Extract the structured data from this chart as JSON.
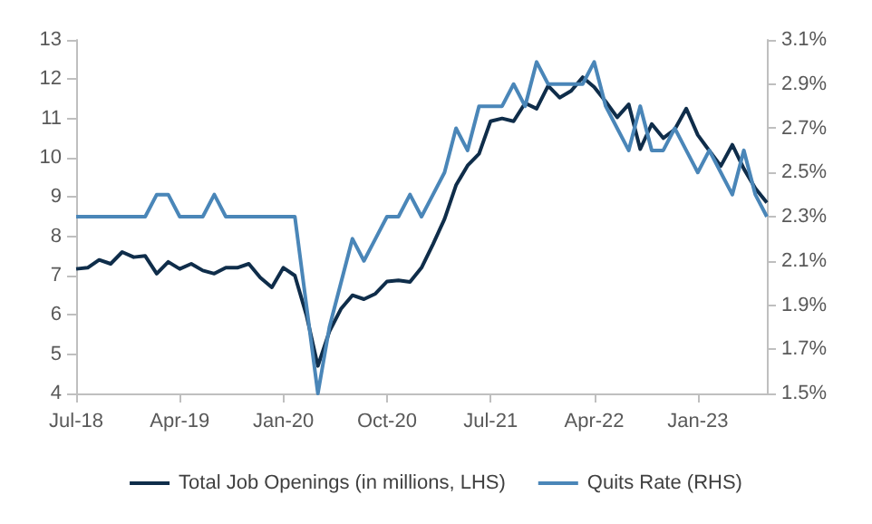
{
  "chart_data": {
    "type": "line",
    "categories": [
      "Jul-18",
      null,
      null,
      null,
      null,
      null,
      null,
      null,
      null,
      "Apr-19",
      null,
      null,
      null,
      null,
      null,
      null,
      null,
      null,
      "Jan-20",
      null,
      null,
      null,
      null,
      null,
      null,
      null,
      null,
      "Oct-20",
      null,
      null,
      null,
      null,
      null,
      null,
      null,
      null,
      "Jul-21",
      null,
      null,
      null,
      null,
      null,
      null,
      null,
      null,
      "Apr-22",
      null,
      null,
      null,
      null,
      null,
      null,
      null,
      null,
      "Jan-23",
      null,
      null,
      null,
      null,
      null,
      null
    ],
    "series": [
      {
        "name": "Total Job Openings (in millions, LHS)",
        "color": "#0f2d4a",
        "values": [
          7.17,
          7.2,
          7.4,
          7.3,
          7.6,
          7.47,
          7.5,
          7.05,
          7.35,
          7.17,
          7.3,
          7.13,
          7.05,
          7.2,
          7.2,
          7.3,
          6.95,
          6.7,
          7.2,
          7.0,
          6.0,
          4.7,
          5.58,
          6.15,
          6.5,
          6.4,
          6.54,
          6.85,
          6.88,
          6.84,
          7.2,
          7.8,
          8.44,
          9.3,
          9.8,
          10.1,
          10.93,
          11.0,
          10.93,
          11.39,
          11.25,
          11.83,
          11.53,
          11.7,
          12.05,
          11.8,
          11.43,
          11.03,
          11.36,
          10.22,
          10.86,
          10.5,
          10.72,
          11.25,
          10.58,
          10.18,
          9.79,
          10.33,
          9.72,
          9.22,
          8.86
        ]
      },
      {
        "name": "Quits Rate (RHS)",
        "color": "#4a86b8",
        "axis": "y2",
        "values": [
          2.3,
          2.3,
          2.3,
          2.3,
          2.3,
          2.3,
          2.3,
          2.4,
          2.4,
          2.3,
          2.3,
          2.3,
          2.4,
          2.3,
          2.3,
          2.3,
          2.3,
          2.3,
          2.3,
          2.3,
          1.9,
          1.5,
          1.8,
          2.0,
          2.2,
          2.1,
          2.2,
          2.3,
          2.3,
          2.4,
          2.3,
          2.4,
          2.5,
          2.7,
          2.6,
          2.8,
          2.8,
          2.8,
          2.9,
          2.8,
          3.0,
          2.9,
          2.9,
          2.9,
          2.9,
          3.0,
          2.8,
          2.7,
          2.6,
          2.8,
          2.6,
          2.6,
          2.7,
          2.6,
          2.5,
          2.6,
          2.5,
          2.4,
          2.6,
          2.4,
          2.3
        ]
      }
    ],
    "ylim": [
      4,
      13
    ],
    "yticks": [
      4,
      5,
      6,
      7,
      8,
      9,
      10,
      11,
      12,
      13
    ],
    "y2lim": [
      1.5,
      3.1
    ],
    "y2ticks": [
      {
        "value": 1.5,
        "label": "1.5%"
      },
      {
        "value": 1.7,
        "label": "1.7%"
      },
      {
        "value": 1.9,
        "label": "1.9%"
      },
      {
        "value": 2.1,
        "label": "2.1%"
      },
      {
        "value": 2.3,
        "label": "2.3%"
      },
      {
        "value": 2.5,
        "label": "2.5%"
      },
      {
        "value": 2.7,
        "label": "2.7%"
      },
      {
        "value": 2.9,
        "label": "2.9%"
      },
      {
        "value": 3.1,
        "label": "3.1%"
      }
    ],
    "grid": false,
    "legend": "bottom",
    "marker": "none",
    "line_style": "solid"
  }
}
